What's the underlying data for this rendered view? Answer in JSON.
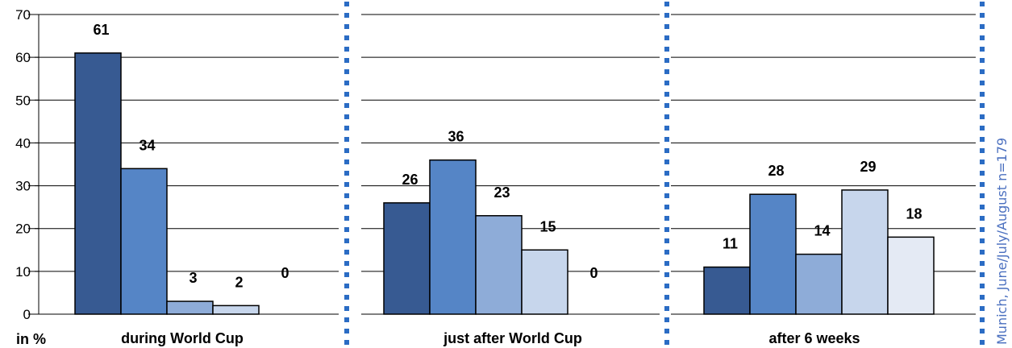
{
  "chart_data": {
    "type": "bar",
    "unit_label": "in %",
    "ylim": [
      0,
      70
    ],
    "yticks": [
      0,
      10,
      20,
      30,
      40,
      50,
      60,
      70
    ],
    "grid": true,
    "colors": [
      "#375a92",
      "#5585c6",
      "#8eacd8",
      "#c7d6ec",
      "#e4eaf4"
    ],
    "panels": [
      {
        "label": "during World Cup",
        "values": [
          61,
          34,
          3,
          2,
          0
        ]
      },
      {
        "label": "just after World Cup",
        "values": [
          26,
          36,
          23,
          15,
          0
        ]
      },
      {
        "label": "after 6 weeks",
        "values": [
          11,
          28,
          14,
          29,
          18
        ]
      }
    ],
    "side_note": "Munich, June/July/August n=179",
    "separator_color": "#2b6cc4"
  }
}
